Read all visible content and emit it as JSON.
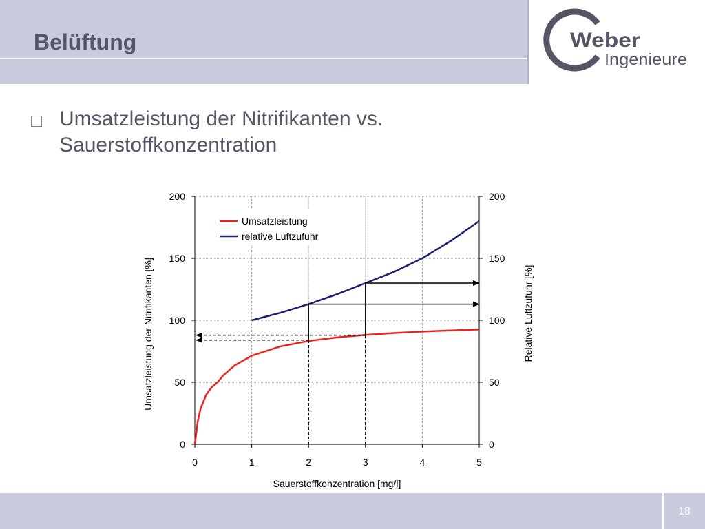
{
  "header": {
    "title": "Belüftung"
  },
  "logo": {
    "name": "Weber",
    "subtitle": "Ingenieure"
  },
  "bullet": {
    "text": "Umsatzleistung der Nitrifikanten vs. Sauerstoffkonzentration"
  },
  "chart_data": {
    "type": "line",
    "xlabel": "Sauerstoffkonzentration [mg/l]",
    "ylabel_left": "Umsatzleistung der Nitrifikanten [%]",
    "ylabel_right": "Relative Luftzufuhr [%]",
    "xlim": [
      0,
      5
    ],
    "ylim": [
      0,
      200
    ],
    "x_ticks": [
      "0",
      "1",
      "2",
      "3",
      "4",
      "5"
    ],
    "y_ticks": [
      "0",
      "50",
      "100",
      "150",
      "200"
    ],
    "grid": "horizontal and vertical gridlines",
    "legend_position": "top-left",
    "series": [
      {
        "name": "Umsatzleistung",
        "color": "#e8261f",
        "x": [
          0,
          0.05,
          0.1,
          0.2,
          0.3,
          0.4,
          0.5,
          0.7,
          1.0,
          1.5,
          2.0,
          2.5,
          3.0,
          3.5,
          4.0,
          4.5,
          5.0
        ],
        "y": [
          0,
          18.2,
          28.6,
          40.0,
          46.2,
          50.0,
          55.6,
          63.6,
          71.4,
          78.9,
          83.3,
          86.2,
          88.2,
          89.7,
          90.9,
          91.8,
          92.6
        ]
      },
      {
        "name": "relative Luftzufuhr",
        "color": "#1a1f6e",
        "x": [
          1,
          1.5,
          2,
          2.5,
          3,
          3.5,
          4,
          4.5,
          5
        ],
        "y": [
          100,
          106,
          113,
          121,
          130,
          139,
          150,
          164,
          180
        ]
      }
    ],
    "annotations": [
      {
        "style": "solid",
        "x": 2,
        "y_from": 84,
        "y_to": 113,
        "arrow_to": "right-axis"
      },
      {
        "style": "solid",
        "x": 3,
        "y_from": 88,
        "y_to": 130,
        "arrow_to": "right-axis"
      },
      {
        "style": "dashed",
        "x": 2,
        "y": 84,
        "arrow_to": "left-axis"
      },
      {
        "style": "dashed",
        "x": 3,
        "y": 88,
        "arrow_to": "left-axis"
      }
    ]
  },
  "footer": {
    "page": "18"
  }
}
